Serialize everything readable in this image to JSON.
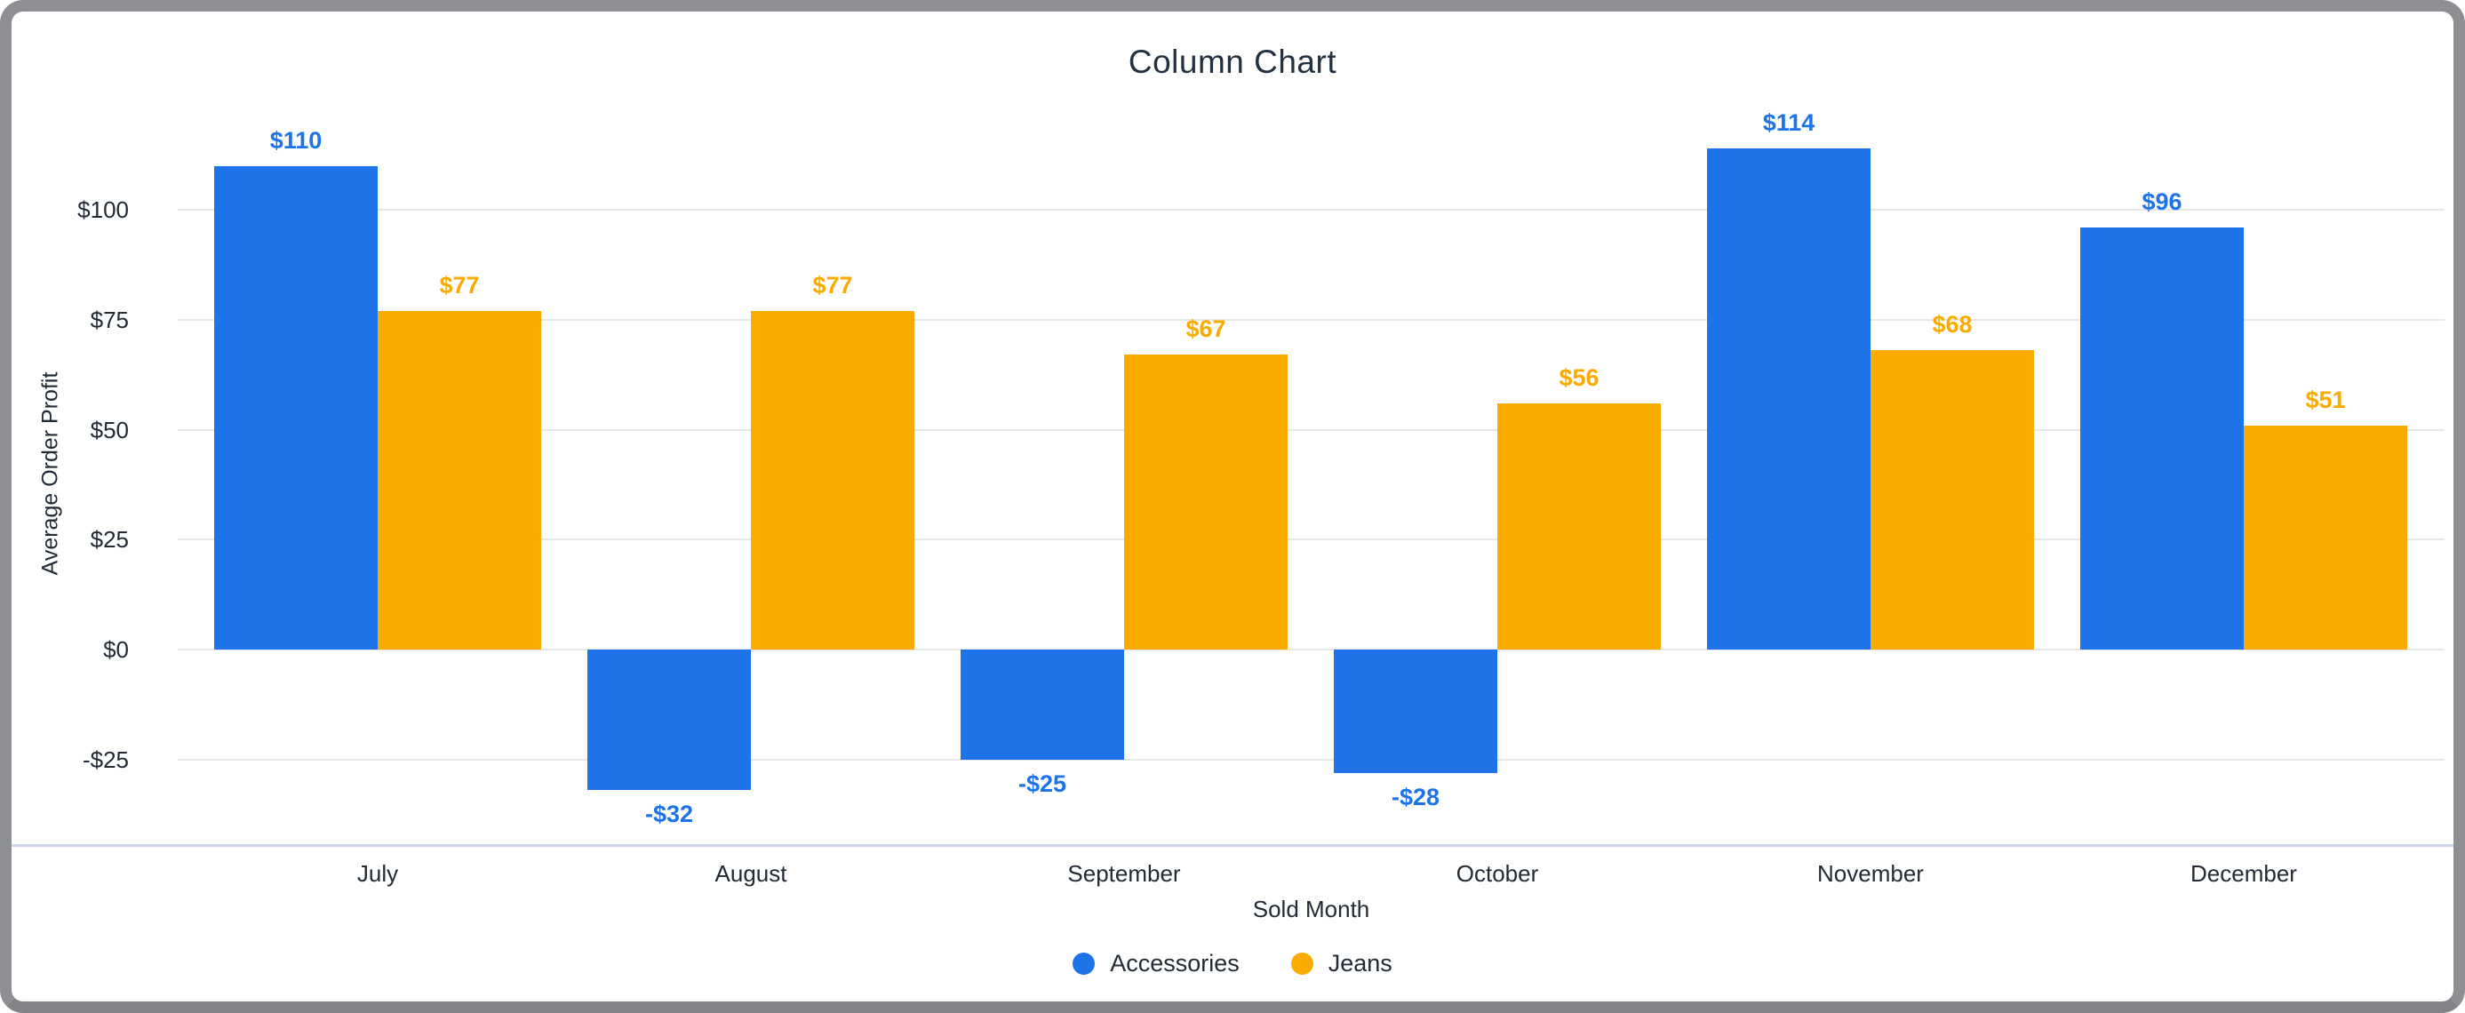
{
  "window": {
    "frame_color": "#8d8f92",
    "background": "#ffffff"
  },
  "chart_data": {
    "type": "bar",
    "title": "Column Chart",
    "xlabel": "Sold Month",
    "ylabel": "Average Order Profit",
    "categories": [
      "July",
      "August",
      "September",
      "October",
      "November",
      "December"
    ],
    "series": [
      {
        "name": "Accessories",
        "color": "#1e73e8",
        "values": [
          110,
          -32,
          -25,
          -28,
          114,
          96
        ],
        "labels": [
          "$110",
          "-$32",
          "-$25",
          "-$28",
          "$114",
          "$96"
        ]
      },
      {
        "name": "Jeans",
        "color": "#f9ab00",
        "values": [
          77,
          77,
          67,
          56,
          68,
          51
        ],
        "labels": [
          "$77",
          "$77",
          "$67",
          "$56",
          "$68",
          "$51"
        ]
      }
    ],
    "y_ticks": [
      {
        "label": "$100",
        "value": 100
      },
      {
        "label": "$75",
        "value": 75
      },
      {
        "label": "$50",
        "value": 50
      },
      {
        "label": "$25",
        "value": 25
      },
      {
        "label": "$0",
        "value": 0
      },
      {
        "label": "-$25",
        "value": -25
      }
    ],
    "ylim": [
      -45,
      126
    ],
    "grid": true,
    "legend_position": "bottom",
    "gridline_color": "#e7e7e7",
    "axis_line_color": "#ccd4e8",
    "label_text_color": "#222b35"
  }
}
